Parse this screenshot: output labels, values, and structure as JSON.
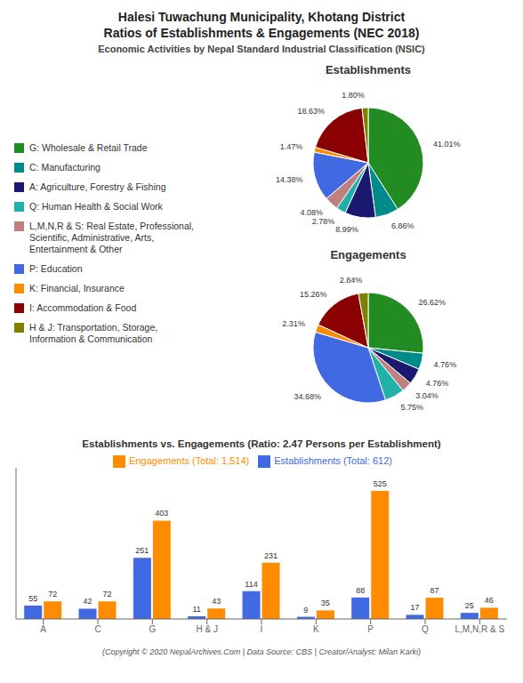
{
  "title": "Halesi Tuwachung Municipality, Khotang District\nRatios of Establishments & Engagements (NEC 2018)",
  "subtitle": "Economic Activities by Nepal Standard Industrial Classification (NSIC)",
  "annotations": [
    "(Copyright © 2020 NepalArchives.Com | Data Source: CBS | Creator/Analyst: Milan Karki)"
  ],
  "chart_data": [
    {
      "type": "pie",
      "title": "Establishments",
      "legend": "left",
      "data_labels": true,
      "categories": [
        "G: Wholesale & Retail Trade",
        "C: Manufacturing",
        "A: Agriculture, Forestry & Fishing",
        "Q: Human Health & Social Work",
        "L,M,N,R & S: Real Estate, Professional,\nScientific, Administrative, Arts,\nEntertainment & Other",
        "P: Education",
        "K: Financial, Insurance",
        "I: Accommodation & Food",
        "H & J: Transportation, Storage,\nInformation & Communication"
      ],
      "values": [
        41.01,
        6.86,
        8.99,
        2.78,
        4.08,
        14.38,
        1.47,
        18.63,
        1.8
      ],
      "value_labels": [
        "41.01%",
        "6.86%",
        "8.99%",
        "2.78%",
        "4.08%",
        "14.38%",
        "1.47%",
        "18.63%",
        "1.80%"
      ],
      "colors": [
        "#228B22",
        "#008B8B",
        "#191970",
        "#20B2AA",
        "#C08080",
        "#4169E1",
        "#FF8C00",
        "#8B0000",
        "#808000"
      ]
    },
    {
      "type": "pie",
      "title": "Engagements",
      "data_labels": true,
      "categories": [
        "G: Wholesale & Retail Trade",
        "C: Manufacturing",
        "A: Agriculture, Forestry & Fishing",
        "L,M,N,R & S: Real Estate, Professional,\nScientific, Administrative, Arts,\nEntertainment & Other",
        "Q: Human Health & Social Work",
        "P: Education",
        "K: Financial, Insurance",
        "I: Accommodation & Food",
        "H & J: Transportation, Storage,\nInformation & Communication"
      ],
      "values": [
        26.62,
        4.76,
        4.76,
        3.04,
        5.75,
        34.68,
        2.31,
        15.26,
        2.84
      ],
      "value_labels": [
        "26.62%",
        "4.76%",
        "4.76%",
        "3.04%",
        "5.75%",
        "34.68%",
        "2.31%",
        "15.26%",
        "2.84%"
      ],
      "colors": [
        "#228B22",
        "#008B8B",
        "#191970",
        "#C08080",
        "#20B2AA",
        "#4169E1",
        "#FF8C00",
        "#8B0000",
        "#808000"
      ]
    },
    {
      "type": "bar",
      "title": "Establishments vs. Engagements (Ratio: 2.47 Persons per Establishment)",
      "categories": [
        "A",
        "C",
        "G",
        "H & J",
        "I",
        "K",
        "P",
        "Q",
        "L,M,N,R & S"
      ],
      "series": [
        {
          "name": "Establishments (Total: 612)",
          "color": "#4169E1",
          "values": [
            55,
            42,
            251,
            11,
            114,
            9,
            88,
            17,
            25
          ]
        },
        {
          "name": "Engagements (Total: 1,514)",
          "color": "#FF8C00",
          "values": [
            72,
            72,
            403,
            43,
            231,
            35,
            525,
            87,
            46
          ]
        }
      ],
      "ylim": [
        0,
        619.5
      ],
      "grid": false,
      "legend": "top",
      "data_labels": true,
      "tick_labels": "x"
    }
  ]
}
